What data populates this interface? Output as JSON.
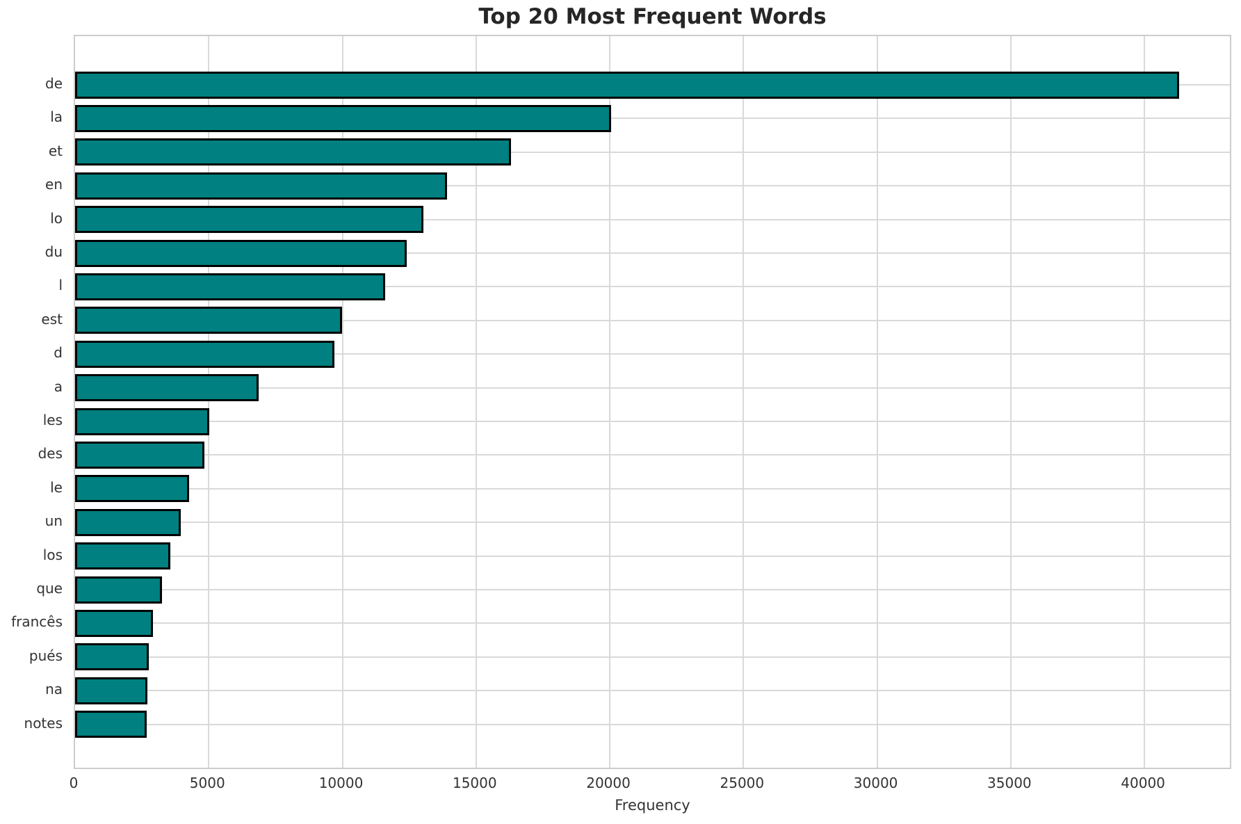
{
  "chart_data": {
    "type": "bar",
    "orientation": "horizontal",
    "title": "Top 20 Most Frequent Words",
    "xlabel": "Frequency",
    "ylabel": "",
    "categories": [
      "de",
      "la",
      "et",
      "en",
      "lo",
      "du",
      "l",
      "est",
      "d",
      "a",
      "les",
      "des",
      "le",
      "un",
      "los",
      "que",
      "francês",
      "pués",
      "na",
      "notes"
    ],
    "values": [
      41300,
      20050,
      16300,
      13920,
      13030,
      12400,
      11600,
      9990,
      9700,
      6860,
      5020,
      4830,
      4260,
      3960,
      3570,
      3250,
      2920,
      2750,
      2710,
      2680
    ],
    "xlim": [
      0,
      43300
    ],
    "xticks": [
      0,
      5000,
      10000,
      15000,
      20000,
      25000,
      30000,
      35000,
      40000
    ],
    "grid": true,
    "legend": null,
    "colors": {
      "bar_fill": "#008080",
      "bar_edge": "#000000",
      "grid": "#d9d9d9",
      "frame": "#cccccc",
      "title": "#262626",
      "tick": "#333333",
      "background": "#ffffff"
    }
  }
}
